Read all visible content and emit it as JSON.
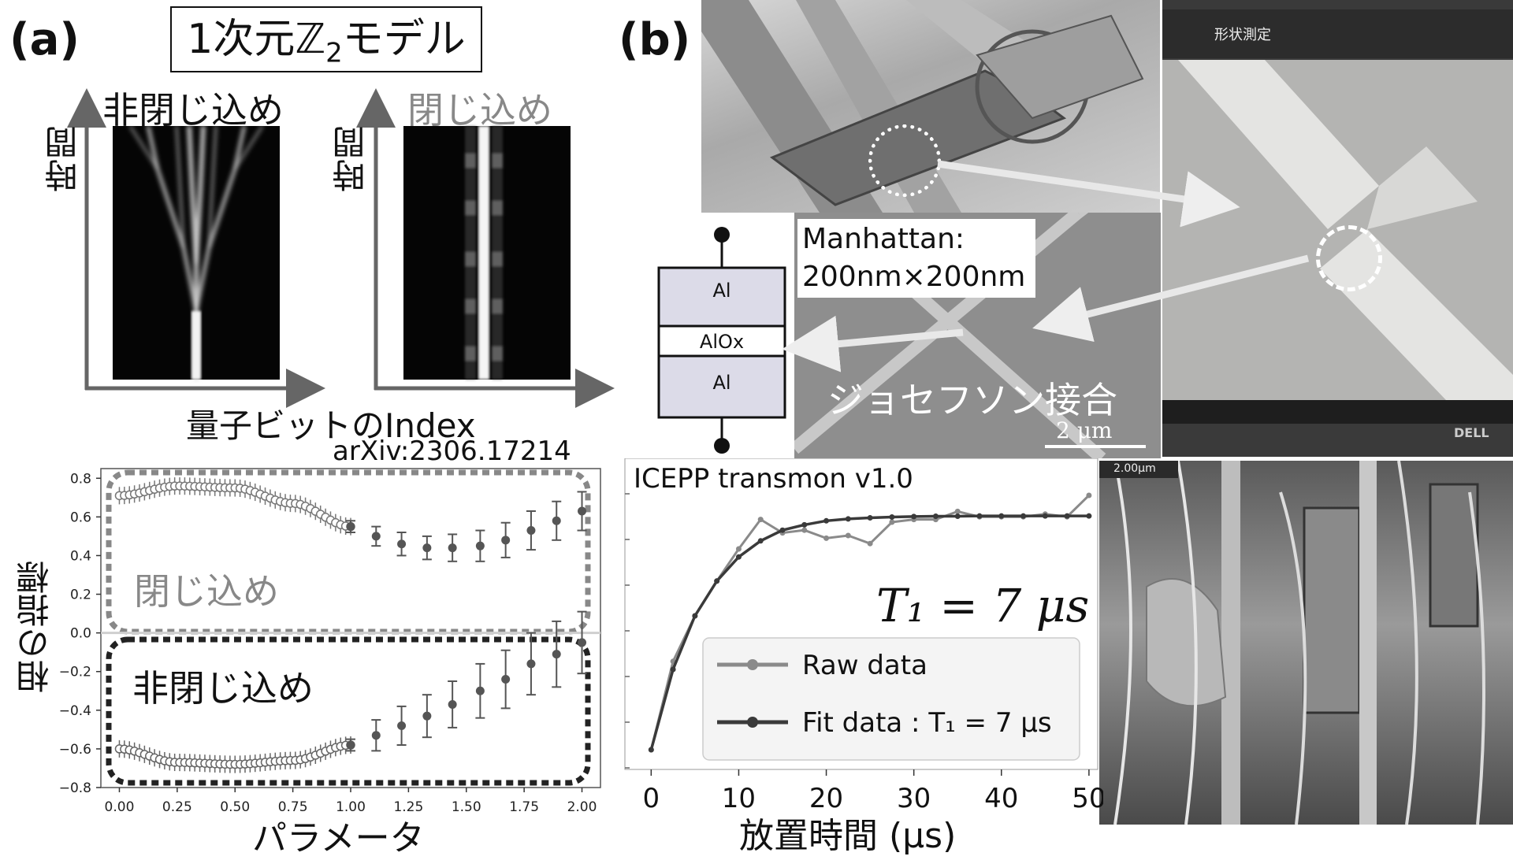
{
  "panel_a": {
    "label": "(a)",
    "title": "1次元ℤ₂モデル",
    "title_main": "1次元ℤ",
    "title_sub": "2",
    "title_end": "モデル",
    "heatmap_left_title": "非閉じ込め",
    "heatmap_right_title": "閉じ込め",
    "time_axis_label": "時間",
    "qubit_axis_label": "量子ビットのIndex",
    "citation": "arXiv:2306.17214"
  },
  "panel_b": {
    "label": "(b)",
    "manhattan_line1": "Manhattan:",
    "manhattan_line2": "200nm×200nm",
    "junction_label": "ジョセフソン接合",
    "scale_bar": "2 μm",
    "sem_scale": "2.00μm",
    "jj_layers": [
      "Al",
      "AlOx",
      "Al"
    ],
    "monitor_toolbar_title": "形状測定",
    "monitor_brand": "DELL"
  },
  "chart_data": [
    {
      "type": "scatter",
      "title": "",
      "xlabel": "パラメータ",
      "ylabel": "相の指標",
      "xlim": [
        -0.08,
        2.08
      ],
      "ylim": [
        -0.8,
        0.85
      ],
      "x_ticks": [
        "0.00",
        "0.25",
        "0.50",
        "0.75",
        "1.00",
        "1.25",
        "1.50",
        "1.75",
        "2.00"
      ],
      "y_ticks": [
        "0.8",
        "0.6",
        "0.4",
        "0.2",
        "0.0",
        "−0.2",
        "−0.4",
        "−0.6",
        "−0.8"
      ],
      "region_labels": [
        "閉じ込め",
        "非閉じ込め"
      ],
      "series": [
        {
          "name": "閉じ込め",
          "dense_x_range": [
            0,
            1.0
          ],
          "dense_y_profile": [
            [
              0.0,
              0.71
            ],
            [
              0.25,
              0.76
            ],
            [
              0.5,
              0.75
            ],
            [
              0.75,
              0.67
            ],
            [
              1.0,
              0.55
            ]
          ],
          "points": [
            {
              "x": 1.0,
              "y": 0.55,
              "err": 0.03
            },
            {
              "x": 1.11,
              "y": 0.5,
              "err": 0.05
            },
            {
              "x": 1.22,
              "y": 0.46,
              "err": 0.06
            },
            {
              "x": 1.33,
              "y": 0.44,
              "err": 0.06
            },
            {
              "x": 1.44,
              "y": 0.44,
              "err": 0.07
            },
            {
              "x": 1.56,
              "y": 0.45,
              "err": 0.08
            },
            {
              "x": 1.67,
              "y": 0.48,
              "err": 0.09
            },
            {
              "x": 1.78,
              "y": 0.53,
              "err": 0.1
            },
            {
              "x": 1.89,
              "y": 0.58,
              "err": 0.1
            },
            {
              "x": 2.0,
              "y": 0.63,
              "err": 0.1
            }
          ]
        },
        {
          "name": "非閉じ込め",
          "dense_x_range": [
            0,
            1.0
          ],
          "dense_y_profile": [
            [
              0.0,
              -0.6
            ],
            [
              0.25,
              -0.67
            ],
            [
              0.5,
              -0.68
            ],
            [
              0.75,
              -0.66
            ],
            [
              1.0,
              -0.58
            ]
          ],
          "points": [
            {
              "x": 1.0,
              "y": -0.58,
              "err": 0.03
            },
            {
              "x": 1.11,
              "y": -0.53,
              "err": 0.08
            },
            {
              "x": 1.22,
              "y": -0.48,
              "err": 0.1
            },
            {
              "x": 1.33,
              "y": -0.43,
              "err": 0.11
            },
            {
              "x": 1.44,
              "y": -0.37,
              "err": 0.12
            },
            {
              "x": 1.56,
              "y": -0.3,
              "err": 0.14
            },
            {
              "x": 1.67,
              "y": -0.24,
              "err": 0.15
            },
            {
              "x": 1.78,
              "y": -0.16,
              "err": 0.16
            },
            {
              "x": 1.89,
              "y": -0.11,
              "err": 0.17
            },
            {
              "x": 2.0,
              "y": -0.05,
              "err": 0.16
            }
          ]
        }
      ],
      "separator_y": 0.0
    },
    {
      "type": "line",
      "title": "ICEPP transmon v1.0",
      "xlabel": "放置時間 (μs)",
      "ylabel": "",
      "xlim": [
        -3,
        51
      ],
      "ylim": [
        0.0,
        1.0
      ],
      "x_ticks": [
        "0",
        "10",
        "20",
        "30",
        "40",
        "50"
      ],
      "annotation": "T₁ = 7 μs",
      "legend_position": "bottom-right",
      "legend_entries": [
        "Raw data",
        "Fit data : T₁ = 7 μs"
      ],
      "series": [
        {
          "name": "Raw data",
          "color": "#8a8a8a",
          "x": [
            0,
            2.5,
            5,
            7.5,
            10,
            12.5,
            15,
            17.5,
            20,
            22.5,
            25,
            27.5,
            30,
            32.5,
            35,
            37.5,
            40,
            42.5,
            45,
            47.5,
            50
          ],
          "y": [
            0.0,
            0.33,
            0.5,
            0.63,
            0.75,
            0.86,
            0.81,
            0.82,
            0.79,
            0.8,
            0.77,
            0.85,
            0.86,
            0.86,
            0.89,
            0.87,
            0.87,
            0.87,
            0.88,
            0.87,
            0.95
          ]
        },
        {
          "name": "Fit data : T₁ = 7 μs",
          "color": "#3a3a3a",
          "x": [
            0,
            2.5,
            5,
            7.5,
            10,
            12.5,
            15,
            17.5,
            20,
            22.5,
            25,
            27.5,
            30,
            32.5,
            35,
            37.5,
            40,
            42.5,
            45,
            47.5,
            50
          ],
          "y": [
            0.0,
            0.3,
            0.5,
            0.63,
            0.72,
            0.78,
            0.82,
            0.84,
            0.855,
            0.862,
            0.866,
            0.869,
            0.871,
            0.872,
            0.872,
            0.873,
            0.873,
            0.873,
            0.873,
            0.873,
            0.873
          ]
        }
      ]
    }
  ]
}
